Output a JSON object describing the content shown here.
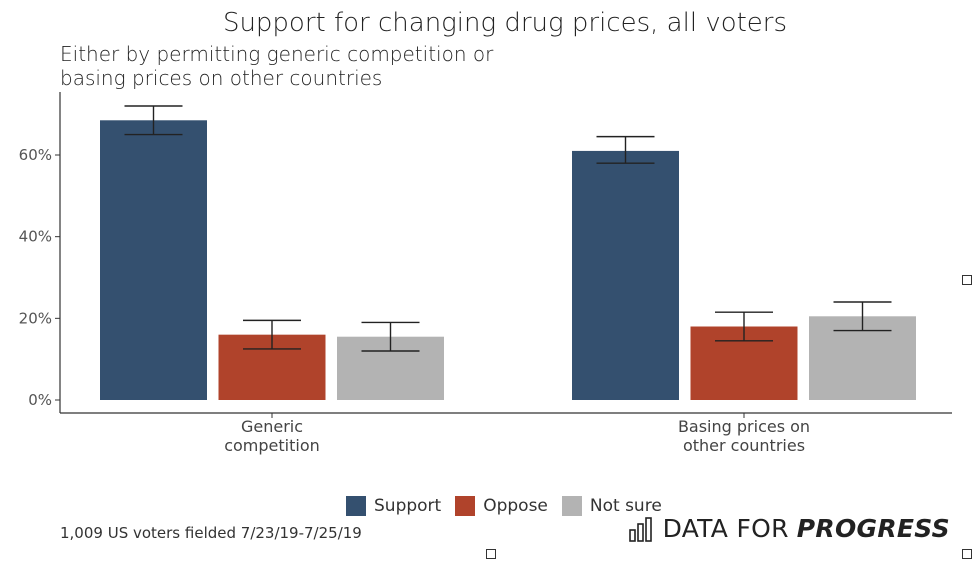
{
  "chart_data": {
    "type": "bar",
    "title": "Support for changing drug prices, all voters",
    "subtitle": "Either by permitting generic competition or basing prices on other countries",
    "subtitle_lines": [
      "Either by permitting generic competition or",
      "basing prices on other countries"
    ],
    "categories": [
      {
        "label_lines": [
          "Generic",
          "competition"
        ]
      },
      {
        "label_lines": [
          "Basing prices on",
          "other countries"
        ]
      }
    ],
    "series": [
      {
        "name": "Support",
        "color": "#34506f",
        "values": [
          68.5,
          61.0
        ],
        "error_low": [
          65.0,
          58.0
        ],
        "error_high": [
          72.0,
          64.5
        ]
      },
      {
        "name": "Oppose",
        "color": "#b0432b",
        "values": [
          16.0,
          18.0
        ],
        "error_low": [
          12.5,
          14.5
        ],
        "error_high": [
          19.5,
          21.5
        ]
      },
      {
        "name": "Not sure",
        "color": "#b3b3b3",
        "values": [
          15.5,
          20.5
        ],
        "error_low": [
          12.0,
          17.0
        ],
        "error_high": [
          19.0,
          24.0
        ]
      }
    ],
    "y_ticks": [
      0,
      20,
      40,
      60
    ],
    "y_tick_labels": [
      "0%",
      "20%",
      "40%",
      "60%"
    ],
    "ylim": [
      0,
      75
    ],
    "xlabel": "",
    "ylabel": "",
    "grid": false,
    "legend_position": "bottom"
  },
  "caption": "1,009 US voters fielded 7/23/19-7/25/19",
  "brand": {
    "light": "DATA FOR",
    "bold": "PROGRESS",
    "icon": "bar-chart-icon"
  }
}
